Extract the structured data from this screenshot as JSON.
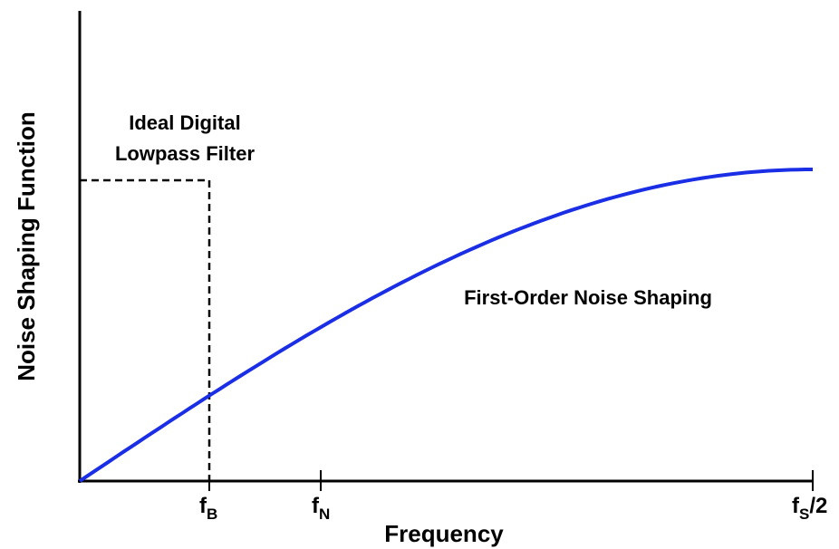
{
  "axes": {
    "x_label": "Frequency",
    "y_label": "Noise Shaping Function",
    "ticks": [
      {
        "base": "f",
        "sub": "B"
      },
      {
        "base": "f",
        "sub": "N"
      },
      {
        "base": "f",
        "sub": "S",
        "suffix": "/2"
      }
    ]
  },
  "annotations": {
    "filter": [
      "Ideal Digital",
      "Lowpass Filter"
    ],
    "curve": "First-Order Noise Shaping"
  }
}
